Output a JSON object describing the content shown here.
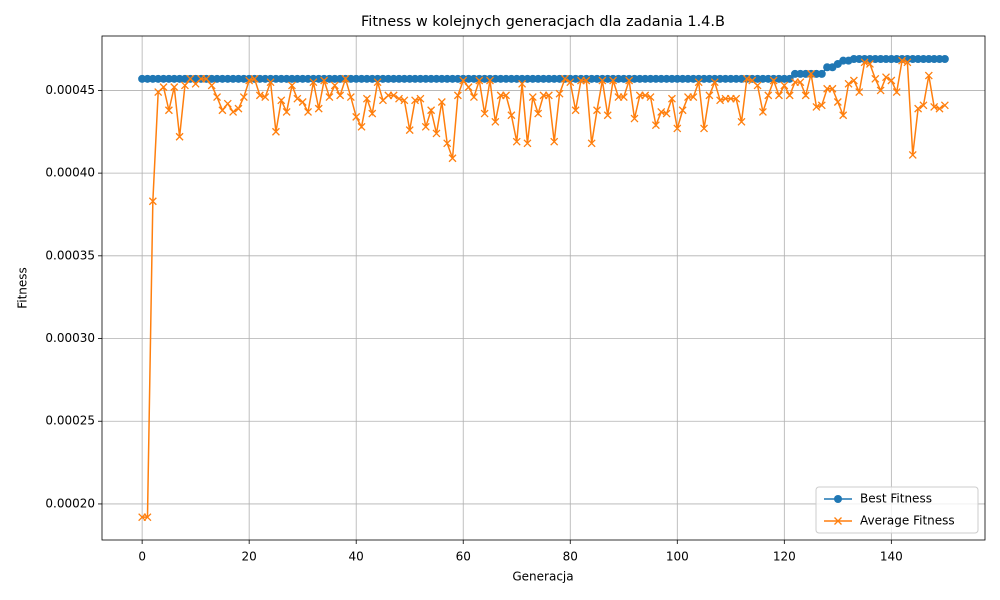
{
  "chart_data": {
    "type": "line",
    "title": "Fitness w kolejnych generacjach dla zadania 1.4.B",
    "x_label": "Generacja",
    "y_label": "Fitness",
    "x": [
      0,
      1,
      2,
      3,
      4,
      5,
      6,
      7,
      8,
      9,
      10,
      11,
      12,
      13,
      14,
      15,
      16,
      17,
      18,
      19,
      20,
      21,
      22,
      23,
      24,
      25,
      26,
      27,
      28,
      29,
      30,
      31,
      32,
      33,
      34,
      35,
      36,
      37,
      38,
      39,
      40,
      41,
      42,
      43,
      44,
      45,
      46,
      47,
      48,
      49,
      50,
      51,
      52,
      53,
      54,
      55,
      56,
      57,
      58,
      59,
      60,
      61,
      62,
      63,
      64,
      65,
      66,
      67,
      68,
      69,
      70,
      71,
      72,
      73,
      74,
      75,
      76,
      77,
      78,
      79,
      80,
      81,
      82,
      83,
      84,
      85,
      86,
      87,
      88,
      89,
      90,
      91,
      92,
      93,
      94,
      95,
      96,
      97,
      98,
      99,
      100,
      101,
      102,
      103,
      104,
      105,
      106,
      107,
      108,
      109,
      110,
      111,
      112,
      113,
      114,
      115,
      116,
      117,
      118,
      119,
      120,
      121,
      122,
      123,
      124,
      125,
      126,
      127,
      128,
      129,
      130,
      131,
      132,
      133,
      134,
      135,
      136,
      137,
      138,
      139,
      140,
      141,
      142,
      143,
      144,
      145,
      146,
      147,
      148,
      149,
      150
    ],
    "series": [
      {
        "name": "Best Fitness",
        "color": "#1f77b4",
        "marker": "o",
        "values": [
          0.000457,
          0.000457,
          0.000457,
          0.000457,
          0.000457,
          0.000457,
          0.000457,
          0.000457,
          0.000457,
          0.000457,
          0.000457,
          0.000457,
          0.000457,
          0.000457,
          0.000457,
          0.000457,
          0.000457,
          0.000457,
          0.000457,
          0.000457,
          0.000457,
          0.000457,
          0.000457,
          0.000457,
          0.000457,
          0.000457,
          0.000457,
          0.000457,
          0.000457,
          0.000457,
          0.000457,
          0.000457,
          0.000457,
          0.000457,
          0.000457,
          0.000457,
          0.000457,
          0.000457,
          0.000457,
          0.000457,
          0.000457,
          0.000457,
          0.000457,
          0.000457,
          0.000457,
          0.000457,
          0.000457,
          0.000457,
          0.000457,
          0.000457,
          0.000457,
          0.000457,
          0.000457,
          0.000457,
          0.000457,
          0.000457,
          0.000457,
          0.000457,
          0.000457,
          0.000457,
          0.000457,
          0.000457,
          0.000457,
          0.000457,
          0.000457,
          0.000457,
          0.000457,
          0.000457,
          0.000457,
          0.000457,
          0.000457,
          0.000457,
          0.000457,
          0.000457,
          0.000457,
          0.000457,
          0.000457,
          0.000457,
          0.000457,
          0.000457,
          0.000457,
          0.000457,
          0.000457,
          0.000457,
          0.000457,
          0.000457,
          0.000457,
          0.000457,
          0.000457,
          0.000457,
          0.000457,
          0.000457,
          0.000457,
          0.000457,
          0.000457,
          0.000457,
          0.000457,
          0.000457,
          0.000457,
          0.000457,
          0.000457,
          0.000457,
          0.000457,
          0.000457,
          0.000457,
          0.000457,
          0.000457,
          0.000457,
          0.000457,
          0.000457,
          0.000457,
          0.000457,
          0.000457,
          0.000457,
          0.000457,
          0.000457,
          0.000457,
          0.000457,
          0.000457,
          0.000457,
          0.000457,
          0.000457,
          0.00046,
          0.00046,
          0.00046,
          0.00046,
          0.00046,
          0.00046,
          0.000464,
          0.000464,
          0.000466,
          0.000468,
          0.000468,
          0.000469,
          0.000469,
          0.000469,
          0.000469,
          0.000469,
          0.000469,
          0.000469,
          0.000469,
          0.000469,
          0.000469,
          0.000469,
          0.000469,
          0.000469,
          0.000469,
          0.000469,
          0.000469,
          0.000469,
          0.000469
        ]
      },
      {
        "name": "Average Fitness",
        "color": "#ff7f0e",
        "marker": "x",
        "values": [
          0.000192,
          0.000192,
          0.000383,
          0.000449,
          0.000452,
          0.000438,
          0.000452,
          0.000422,
          0.000453,
          0.000457,
          0.000454,
          0.000457,
          0.000457,
          0.000453,
          0.000446,
          0.000438,
          0.000442,
          0.000437,
          0.000439,
          0.000446,
          0.000456,
          0.000457,
          0.000447,
          0.000446,
          0.000455,
          0.000425,
          0.000444,
          0.000437,
          0.000453,
          0.000445,
          0.000443,
          0.000437,
          0.000455,
          0.000439,
          0.000456,
          0.000446,
          0.000453,
          0.000447,
          0.000457,
          0.000446,
          0.000434,
          0.000428,
          0.000445,
          0.000436,
          0.000455,
          0.000444,
          0.000447,
          0.000447,
          0.000445,
          0.000444,
          0.000426,
          0.000444,
          0.000445,
          0.000428,
          0.000438,
          0.000424,
          0.000443,
          0.000418,
          0.000409,
          0.000447,
          0.000456,
          0.000452,
          0.000446,
          0.000456,
          0.000436,
          0.000456,
          0.000431,
          0.000447,
          0.000447,
          0.000435,
          0.000419,
          0.000454,
          0.000418,
          0.000446,
          0.000436,
          0.000447,
          0.000447,
          0.000419,
          0.000448,
          0.000457,
          0.000455,
          0.000438,
          0.000456,
          0.000456,
          0.000418,
          0.000438,
          0.000456,
          0.000435,
          0.000456,
          0.000446,
          0.000446,
          0.000456,
          0.000433,
          0.000447,
          0.000447,
          0.000446,
          0.000429,
          0.000437,
          0.000436,
          0.000445,
          0.000427,
          0.000438,
          0.000446,
          0.000446,
          0.000455,
          0.000427,
          0.000447,
          0.000455,
          0.000444,
          0.000445,
          0.000445,
          0.000445,
          0.000431,
          0.000457,
          0.000456,
          0.000453,
          0.000437,
          0.000447,
          0.000456,
          0.000447,
          0.000453,
          0.000447,
          0.000455,
          0.000455,
          0.000447,
          0.00046,
          0.00044,
          0.000441,
          0.000451,
          0.000451,
          0.000443,
          0.000435,
          0.000454,
          0.000456,
          0.000449,
          0.000467,
          0.000466,
          0.000457,
          0.00045,
          0.000458,
          0.000456,
          0.000449,
          0.000468,
          0.000467,
          0.000411,
          0.000439,
          0.000441,
          0.000459,
          0.00044,
          0.000439,
          0.000441
        ]
      }
    ],
    "xlim": [
      -7.5,
      157.5
    ],
    "xticks": [
      0,
      20,
      40,
      60,
      80,
      100,
      120,
      140
    ],
    "ylim": [
      0.0001782,
      0.0004829
    ],
    "yticks": [
      {
        "value": 0.0002,
        "label": "0.00020"
      },
      {
        "value": 0.00025,
        "label": "0.00025"
      },
      {
        "value": 0.0003,
        "label": "0.00030"
      },
      {
        "value": 0.00035,
        "label": "0.00035"
      },
      {
        "value": 0.0004,
        "label": "0.00040"
      },
      {
        "value": 0.00045,
        "label": "0.00045"
      }
    ],
    "grid": true,
    "legend": "lower right"
  }
}
